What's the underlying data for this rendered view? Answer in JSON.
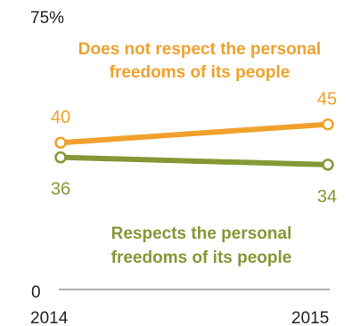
{
  "chart_data": {
    "type": "line",
    "x": [
      "2014",
      "2015"
    ],
    "ylim": [
      0,
      75
    ],
    "ytick_labels": [
      "0",
      "75%"
    ],
    "grid": false,
    "series": [
      {
        "name": "Does not respect the personal freedoms of its people",
        "label_lines": [
          "Does not respect the personal",
          "freedoms of its people"
        ],
        "values": [
          40,
          45
        ],
        "value_labels": [
          "40",
          "45"
        ],
        "color": "#f0a12c"
      },
      {
        "name": "Respects the personal freedoms of its people",
        "label_lines": [
          "Respects the personal",
          "freedoms of its people"
        ],
        "values": [
          36,
          34
        ],
        "value_labels": [
          "36",
          "34"
        ],
        "color": "#849836"
      }
    ]
  }
}
